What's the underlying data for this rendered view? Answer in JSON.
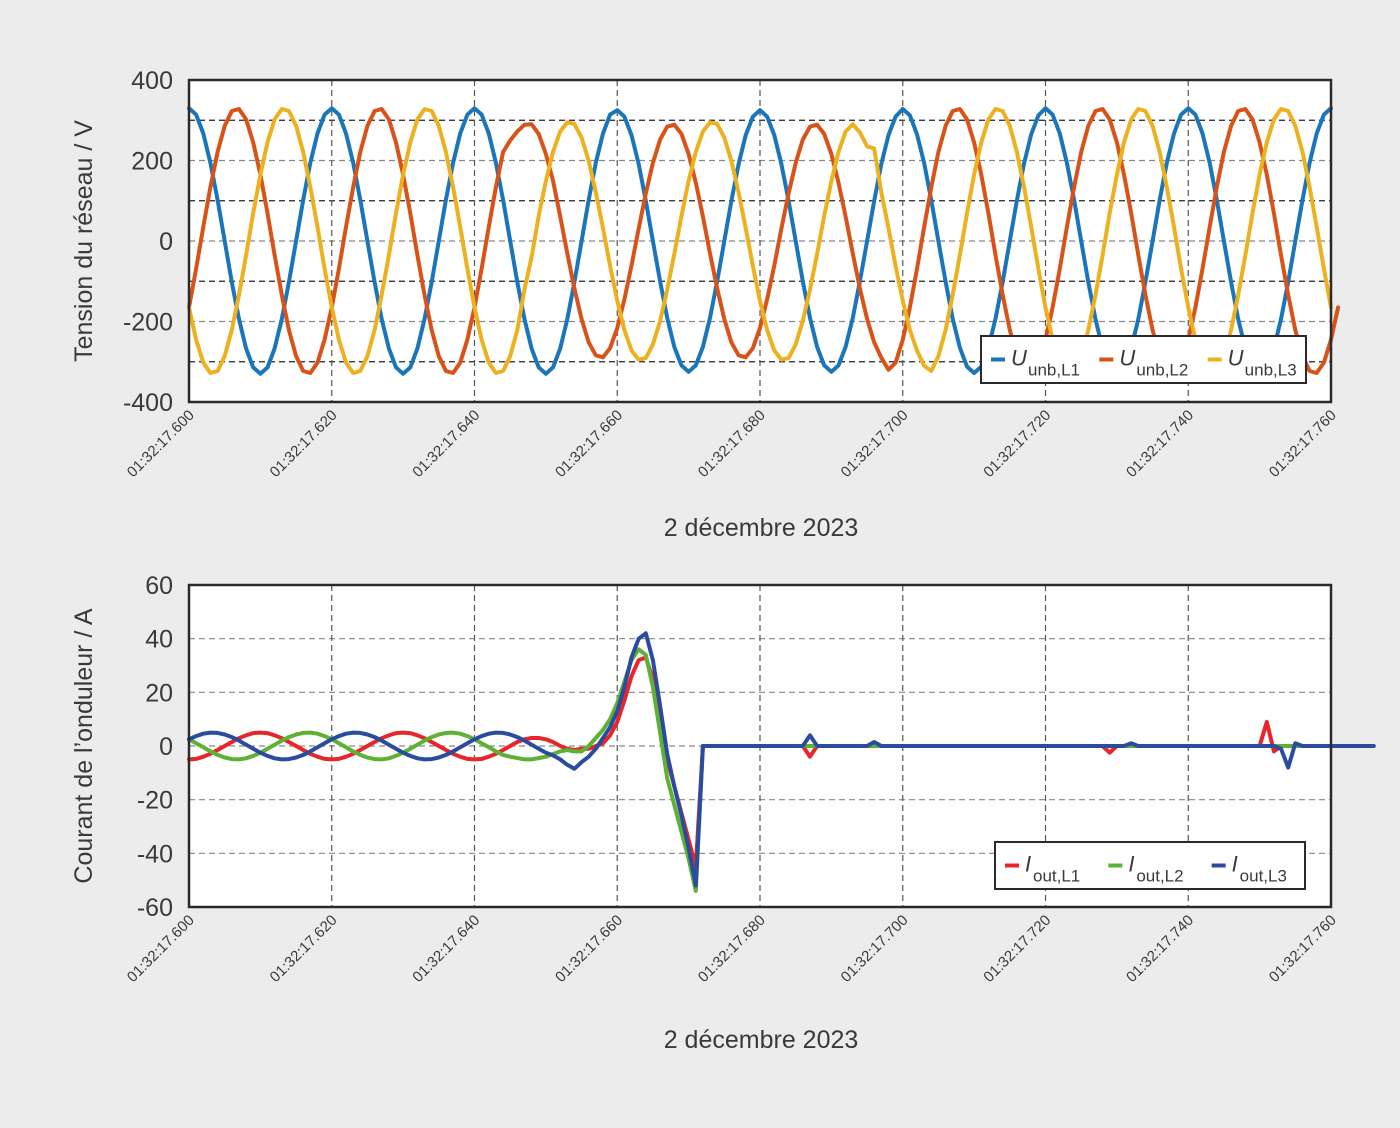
{
  "chart_data": [
    {
      "type": "line",
      "title": "",
      "ylabel": "Tension du réseau / V",
      "xlabel": "2 décembre 2023",
      "ylim": [
        -400,
        400
      ],
      "yticks": [
        400,
        200,
        0,
        -200,
        -400
      ],
      "ytick_labels": [
        "400",
        "200",
        "0",
        "-200",
        "-400"
      ],
      "y_minor_grid": [
        300,
        100,
        -100,
        -300
      ],
      "xlim_ms": [
        0,
        160
      ],
      "x_start": "01:32:17.600",
      "x_step_ms": 1,
      "xticks_ms": [
        0,
        20,
        40,
        60,
        80,
        100,
        120,
        140,
        160
      ],
      "xtick_labels": [
        "01:32:17.600",
        "01:32:17.620",
        "01:32:17.640",
        "01:32:17.660",
        "01:32:17.680",
        "01:32:17.700",
        "01:32:17.720",
        "01:32:17.740",
        "01:32:17.760"
      ],
      "grid": true,
      "legend_position": "lower right",
      "series": [
        {
          "name": "U_unb,L1",
          "label_main": "U",
          "label_sub": "unb,L1",
          "color": "#1a75bb",
          "values": [
            330,
            314,
            267,
            194,
            102,
            0,
            -102,
            -194,
            -267,
            -314,
            -330,
            -314,
            -267,
            -194,
            -102,
            0,
            102,
            194,
            267,
            314,
            330,
            314,
            267,
            194,
            102,
            0,
            -102,
            -194,
            -267,
            -314,
            -330,
            -314,
            -267,
            -194,
            -102,
            0,
            102,
            194,
            267,
            314,
            330,
            314,
            267,
            194,
            102,
            0,
            -102,
            -194,
            -267,
            -314,
            -330,
            -314,
            -267,
            -194,
            -102,
            0,
            102,
            194,
            267,
            314,
            325,
            309,
            263,
            191,
            100,
            0,
            -100,
            -191,
            -263,
            -309,
            -325,
            -309,
            -263,
            -191,
            -100,
            0,
            100,
            191,
            263,
            309,
            325,
            309,
            263,
            191,
            100,
            0,
            -100,
            -191,
            -263,
            -309,
            -325,
            -309,
            -263,
            -191,
            -100,
            0,
            100,
            191,
            263,
            309,
            328,
            312,
            265,
            193,
            101,
            0,
            -101,
            -193,
            -265,
            -312,
            -328,
            -312,
            -265,
            -193,
            -101,
            0,
            101,
            193,
            265,
            312,
            330,
            314,
            267,
            194,
            102,
            0,
            -102,
            -194,
            -267,
            -314,
            -330,
            -314,
            -267,
            -194,
            -102,
            0,
            102,
            194,
            267,
            314,
            330,
            314,
            267,
            194,
            102,
            0,
            -102,
            -194,
            -267,
            -314,
            -330,
            -314,
            -267,
            -194,
            -102,
            0,
            102,
            194,
            267,
            314,
            330
          ]
        },
        {
          "name": "U_unb,L2",
          "label_main": "U",
          "label_sub": "unb,L2",
          "color": "#d95319",
          "values": [
            -165,
            -69,
            35,
            134,
            221,
            286,
            323,
            328,
            302,
            245,
            165,
            69,
            -35,
            -134,
            -221,
            -286,
            -323,
            -328,
            -302,
            -245,
            -165,
            -69,
            35,
            134,
            221,
            286,
            323,
            328,
            302,
            245,
            165,
            69,
            -35,
            -134,
            -221,
            -286,
            -323,
            -328,
            -302,
            -245,
            -165,
            -69,
            35,
            134,
            221,
            250,
            272,
            289,
            290,
            266,
            216,
            150,
            61,
            -31,
            -118,
            -194,
            -252,
            -284,
            -289,
            -266,
            -216,
            -145,
            -61,
            31,
            118,
            194,
            252,
            284,
            289,
            266,
            216,
            145,
            61,
            -31,
            -118,
            -194,
            -252,
            -284,
            -289,
            -266,
            -216,
            -145,
            -61,
            31,
            118,
            194,
            252,
            284,
            289,
            266,
            216,
            145,
            61,
            -31,
            -118,
            -194,
            -252,
            -290,
            -320,
            -302,
            -245,
            -165,
            -69,
            35,
            134,
            221,
            286,
            323,
            328,
            302,
            245,
            165,
            69,
            -35,
            -134,
            -221,
            -286,
            -323,
            -328,
            -302,
            -245,
            -165,
            -69,
            35,
            134,
            221,
            286,
            323,
            328,
            302,
            245,
            165,
            69,
            -35,
            -134,
            -221,
            -286,
            -323,
            -328,
            -302,
            -245,
            -165,
            -69,
            35,
            134,
            221,
            286,
            323,
            328,
            302,
            245,
            165,
            69,
            -35,
            -134,
            -221,
            -286,
            -323,
            -328,
            -302,
            -245,
            -165
          ]
        },
        {
          "name": "U_unb,L3",
          "label_main": "U",
          "label_sub": "unb,L3",
          "color": "#edb120",
          "values": [
            -165,
            -245,
            -302,
            -328,
            -323,
            -286,
            -221,
            -134,
            -35,
            69,
            165,
            245,
            302,
            328,
            323,
            286,
            221,
            134,
            35,
            -69,
            -165,
            -245,
            -302,
            -328,
            -323,
            -286,
            -221,
            -134,
            -35,
            69,
            165,
            245,
            302,
            328,
            323,
            286,
            221,
            134,
            35,
            -69,
            -165,
            -245,
            -302,
            -328,
            -323,
            -286,
            -221,
            -120,
            -40,
            62,
            149,
            221,
            272,
            295,
            291,
            257,
            199,
            121,
            32,
            -62,
            -149,
            -221,
            -272,
            -295,
            -291,
            -257,
            -199,
            -121,
            -32,
            62,
            149,
            221,
            272,
            295,
            291,
            257,
            199,
            121,
            32,
            -62,
            -149,
            -221,
            -272,
            -295,
            -291,
            -257,
            -199,
            -121,
            -32,
            62,
            149,
            221,
            272,
            290,
            270,
            235,
            230,
            121,
            32,
            -62,
            -149,
            -221,
            -272,
            -310,
            -323,
            -286,
            -221,
            -134,
            -35,
            69,
            165,
            245,
            302,
            328,
            323,
            286,
            221,
            134,
            35,
            -69,
            -165,
            -245,
            -302,
            -328,
            -323,
            -286,
            -221,
            -134,
            -35,
            69,
            165,
            245,
            302,
            328,
            323,
            286,
            221,
            134,
            35,
            -69,
            -165,
            -245,
            -302,
            -328,
            -323,
            -286,
            -221,
            -134,
            -35,
            69,
            165,
            245,
            302,
            328,
            323,
            286,
            221,
            134,
            35,
            -69,
            -165
          ]
        }
      ]
    },
    {
      "type": "line",
      "title": "",
      "ylabel": "Courant de l’onduleur / A",
      "xlabel": "2 décembre 2023",
      "ylim": [
        -60,
        60
      ],
      "yticks": [
        60,
        40,
        20,
        0,
        -20,
        -40,
        -60
      ],
      "ytick_labels": [
        "60",
        "40",
        "20",
        "0",
        "-20",
        "-40",
        "-60"
      ],
      "y_minor_grid": [],
      "xlim_ms": [
        0,
        160
      ],
      "x_start": "01:32:17.600",
      "x_step_ms": 1,
      "xticks_ms": [
        0,
        20,
        40,
        60,
        80,
        100,
        120,
        140,
        160
      ],
      "xtick_labels": [
        "01:32:17.600",
        "01:32:17.620",
        "01:32:17.640",
        "01:32:17.660",
        "01:32:17.680",
        "01:32:17.700",
        "01:32:17.720",
        "01:32:17.740",
        "01:32:17.760"
      ],
      "grid": true,
      "legend_position": "lower right",
      "series": [
        {
          "name": "I_out,L1",
          "label_main": "I",
          "label_sub": "out,L1",
          "color": "#e8262a",
          "values": [
            -5,
            -4.8,
            -4,
            -2.9,
            -1.5,
            0,
            1.5,
            2.9,
            4,
            4.8,
            5,
            4.8,
            4,
            2.9,
            1.5,
            0,
            -1.5,
            -2.9,
            -4,
            -4.8,
            -5,
            -4.8,
            -4,
            -2.9,
            -1.5,
            0,
            1.5,
            2.9,
            4,
            4.8,
            5,
            4.8,
            4,
            2.9,
            1.5,
            0,
            -1.5,
            -2.9,
            -4,
            -4.8,
            -5,
            -4.8,
            -4,
            -2.9,
            -1.5,
            0,
            1.5,
            2.5,
            3,
            3,
            2.5,
            1.5,
            0,
            -1,
            -1.5,
            -1,
            -1,
            0,
            1,
            4,
            9,
            17,
            26,
            32,
            33,
            25,
            10,
            -5,
            -15,
            -25,
            -35,
            -45,
            0,
            0,
            0,
            0,
            0,
            0,
            0,
            0,
            0,
            0,
            0,
            0,
            0,
            0,
            0,
            -4,
            0,
            0,
            0,
            0,
            0,
            0,
            0,
            0,
            0,
            0,
            0,
            0,
            0,
            0,
            0,
            0,
            0,
            0,
            0,
            0,
            0,
            0,
            0,
            0,
            0,
            0,
            0,
            0,
            0,
            0,
            0,
            0,
            0,
            0,
            0,
            0,
            0,
            0,
            0,
            0,
            0,
            -2.5,
            0,
            0,
            0,
            0,
            0,
            0,
            0,
            0,
            0,
            0,
            0,
            0,
            0,
            0,
            0,
            0,
            0,
            0,
            0,
            0,
            0,
            9,
            -2,
            0,
            0,
            0,
            0,
            0,
            0,
            0,
            0,
            0,
            0,
            0
          ]
        },
        {
          "name": "I_out,L2",
          "label_main": "I",
          "label_sub": "out,L2",
          "color": "#5db234",
          "values": [
            2.5,
            1,
            -0.5,
            -2,
            -3.3,
            -4.3,
            -4.9,
            -5,
            -4.6,
            -3.7,
            -2.5,
            -1,
            0.5,
            2,
            3.3,
            4.3,
            4.9,
            5,
            4.6,
            3.7,
            2.5,
            1,
            -0.5,
            -2,
            -3.3,
            -4.3,
            -4.9,
            -5,
            -4.6,
            -3.7,
            -2.5,
            -1,
            0.5,
            2,
            3.3,
            4.3,
            4.9,
            5,
            4.6,
            3.7,
            2.5,
            1,
            -0.5,
            -2,
            -3.3,
            -4,
            -4.5,
            -5,
            -5,
            -4.5,
            -4,
            -3,
            -2,
            -1.5,
            -2,
            -2,
            0,
            3,
            6,
            10,
            16,
            24,
            32,
            36,
            34,
            22,
            5,
            -12,
            -22,
            -32,
            -42,
            -54,
            0,
            0,
            0,
            0,
            0,
            0,
            0,
            0,
            0,
            0,
            0,
            0,
            0,
            0,
            0,
            0,
            0,
            0,
            0,
            0,
            0,
            0,
            0,
            0,
            0,
            0,
            0,
            0,
            0,
            0,
            0,
            0,
            0,
            0,
            0,
            0,
            0,
            0,
            0,
            0,
            0,
            0,
            0,
            0,
            0,
            0,
            0,
            0,
            0,
            0,
            0,
            0,
            0,
            0,
            0,
            0,
            0,
            0,
            0,
            0,
            0,
            0,
            0,
            0,
            0,
            0,
            0,
            0,
            0,
            0,
            0,
            0,
            0,
            0,
            0,
            0,
            0,
            0,
            0,
            0,
            0,
            0,
            0,
            0,
            0,
            0,
            0,
            0,
            0,
            0,
            0,
            0,
            0
          ]
        },
        {
          "name": "I_out,L3",
          "label_main": "I",
          "label_sub": "out,L3",
          "color": "#2b4c9e",
          "values": [
            2.5,
            3.7,
            4.6,
            5,
            4.9,
            4.3,
            3.3,
            2,
            0.5,
            -1,
            -2.5,
            -3.7,
            -4.6,
            -5,
            -4.9,
            -4.3,
            -3.3,
            -2,
            -0.5,
            1,
            2.5,
            3.7,
            4.6,
            5,
            4.9,
            4.3,
            3.3,
            2,
            0.5,
            -1,
            -2.5,
            -3.7,
            -4.6,
            -5,
            -4.9,
            -4.3,
            -3.3,
            -2,
            -0.5,
            1,
            2.5,
            3.7,
            4.6,
            5,
            4.9,
            4.3,
            3.3,
            2,
            0.5,
            -1,
            -2.5,
            -3.5,
            -5,
            -7,
            -8.5,
            -6,
            -4,
            -1,
            3,
            7,
            13,
            22,
            33,
            40,
            42,
            32,
            15,
            -3,
            -15,
            -26,
            -38,
            -52,
            0,
            0,
            0,
            0,
            0,
            0,
            0,
            0,
            0,
            0,
            0,
            0,
            0,
            0,
            0,
            4,
            0,
            0,
            0,
            0,
            0,
            0,
            0,
            0,
            1.5,
            0,
            0,
            0,
            0,
            0,
            0,
            0,
            0,
            0,
            0,
            0,
            0,
            0,
            0,
            0,
            0,
            0,
            0,
            0,
            0,
            0,
            0,
            0,
            0,
            0,
            0,
            0,
            0,
            0,
            0,
            0,
            0,
            0,
            0,
            0,
            1,
            0,
            0,
            0,
            0,
            0,
            0,
            0,
            0,
            0,
            0,
            0,
            0,
            0,
            0,
            0,
            0,
            0,
            0,
            0,
            0,
            -1,
            -8,
            1,
            0,
            0,
            0,
            0,
            0,
            0,
            0,
            0,
            0,
            0,
            0
          ]
        }
      ]
    }
  ]
}
